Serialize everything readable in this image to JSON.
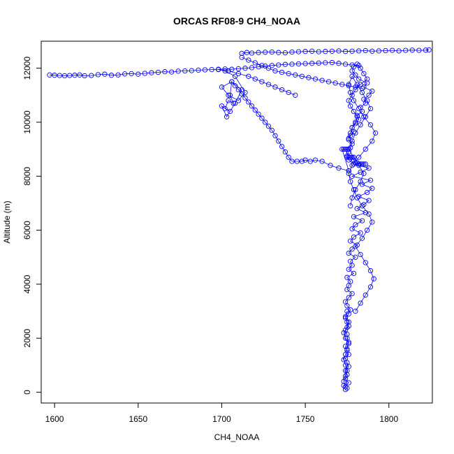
{
  "chart_data": {
    "type": "scatter",
    "title": "ORCAS RF08-9 CH4_NOAA",
    "xlabel": "CH4_NOAA",
    "ylabel": "Altitude (m)",
    "xlim": [
      1592,
      1826
    ],
    "ylim": [
      -400,
      13000
    ],
    "x_ticks": [
      1600,
      1650,
      1700,
      1750,
      1800
    ],
    "y_ticks": [
      0,
      2000,
      4000,
      6000,
      8000,
      10000,
      12000
    ],
    "grid": false,
    "legend": "none",
    "point_style": "open-circle-with-connecting-line",
    "color": "#0000ff",
    "series": [
      {
        "x": [
          1774,
          1775,
          1773,
          1776,
          1774,
          1775,
          1774,
          1776,
          1775,
          1774,
          1776,
          1775,
          1774,
          1776,
          1775,
          1775,
          1774,
          1776,
          1775,
          1774,
          1776,
          1777,
          1775,
          1774,
          1776,
          1778,
          1775,
          1776,
          1777,
          1775,
          1779,
          1776,
          1778,
          1777,
          1780,
          1776,
          1778,
          1781,
          1777,
          1779,
          1783,
          1778,
          1780,
          1784,
          1779,
          1786,
          1781,
          1785,
          1788,
          1782,
          1787,
          1790,
          1784,
          1789,
          1778,
          1783,
          1788,
          1779,
          1776,
          1775,
          1776,
          1777,
          1778,
          1776,
          1777,
          1779,
          1778,
          1780,
          1782,
          1781,
          1784,
          1783,
          1786,
          1785,
          1788,
          1790,
          1785,
          1787,
          1782,
          1780,
          1778,
          1779,
          1781,
          1783,
          1785,
          1787,
          1783,
          1780,
          1778,
          1776,
          1777,
          1779,
          1781,
          1780,
          1778,
          1777,
          1776
        ],
        "y": [
          100,
          150,
          250,
          350,
          500,
          650,
          800,
          950,
          1100,
          1250,
          1400,
          1550,
          1700,
          1850,
          2000,
          2150,
          2300,
          2450,
          2600,
          2750,
          2900,
          3050,
          3200,
          3350,
          3500,
          3650,
          3800,
          3950,
          4100,
          4250,
          4400,
          4550,
          4700,
          4850,
          5000,
          5150,
          5300,
          5450,
          5600,
          5750,
          5900,
          6050,
          6200,
          6350,
          6500,
          6650,
          6800,
          6950,
          7100,
          7250,
          7400,
          7550,
          7700,
          7850,
          8000,
          8150,
          8300,
          8450,
          8600,
          8750,
          8900,
          9050,
          9200,
          9350,
          9500,
          9650,
          9800,
          9950,
          10100,
          10250,
          10400,
          10550,
          10700,
          10850,
          11000,
          11150,
          11300,
          11450,
          11600,
          11750,
          11900,
          12050,
          12150,
          12000,
          11800,
          11600,
          11400,
          11200,
          11000,
          10800,
          10600,
          10400,
          10200,
          10000,
          9800,
          9600,
          9400
        ]
      },
      {
        "x": [
          1780,
          1783,
          1786,
          1789,
          1791,
          1789,
          1786,
          1783,
          1780,
          1784,
          1787,
          1790,
          1788,
          1784,
          1781,
          1779,
          1777,
          1776,
          1778,
          1782,
          1786,
          1790,
          1792,
          1789,
          1785,
          1782,
          1779,
          1777,
          1776,
          1778,
          1781,
          1784,
          1787,
          1789,
          1786,
          1783,
          1780,
          1778,
          1776,
          1779,
          1782,
          1785,
          1783,
          1780,
          1778,
          1777
        ],
        "y": [
          3000,
          3300,
          3600,
          3900,
          4200,
          4500,
          4800,
          5100,
          5400,
          5700,
          6000,
          6300,
          6600,
          6900,
          7200,
          7500,
          7800,
          8100,
          8400,
          8700,
          9000,
          9300,
          9600,
          9900,
          10200,
          10500,
          10800,
          11100,
          11400,
          11700,
          11400,
          11100,
          10800,
          10500,
          10200,
          9900,
          9600,
          9300,
          9000,
          8700,
          8400,
          8100,
          7800,
          7500,
          7200,
          6900
        ]
      },
      {
        "x": [
          1774,
          1773,
          1774,
          1775,
          1774,
          1773,
          1774,
          1775,
          1776,
          1774,
          1773,
          1775,
          1776,
          1774,
          1775
        ],
        "y": [
          200,
          400,
          600,
          800,
          1000,
          1200,
          1400,
          1600,
          1800,
          2000,
          2200,
          2400,
          2600,
          2800,
          3000
        ]
      },
      {
        "x": [
          1776,
          1772,
          1773,
          1774,
          1775,
          1775,
          1776,
          1777,
          1778,
          1779,
          1780,
          1781,
          1782,
          1783,
          1784,
          1785,
          1786
        ],
        "y": [
          8200,
          9000,
          9000,
          9000,
          9000,
          8700,
          8700,
          8700,
          8700,
          8600,
          8500,
          8500,
          8450,
          8450,
          8450,
          8450,
          8450
        ]
      },
      {
        "x": [
          1776,
          1770,
          1765,
          1760,
          1756,
          1753,
          1750,
          1748,
          1745,
          1742,
          1740,
          1738,
          1736,
          1734,
          1732,
          1730,
          1728,
          1726,
          1724,
          1722,
          1720,
          1718,
          1716,
          1714,
          1712,
          1710,
          1708,
          1706,
          1705,
          1707,
          1704,
          1702,
          1705,
          1700,
          1703,
          1708,
          1712,
          1706,
          1700,
          1704,
          1710,
          1714,
          1708,
          1702,
          1698,
          1704,
          1710,
          1716,
          1720,
          1724,
          1728,
          1732,
          1736,
          1740,
          1744
        ],
        "y": [
          8200,
          8300,
          8400,
          8550,
          8600,
          8550,
          8600,
          8550,
          8550,
          8550,
          8700,
          8900,
          9100,
          9300,
          9500,
          9700,
          9850,
          10000,
          10150,
          10300,
          10450,
          10600,
          10750,
          10900,
          11050,
          11200,
          11350,
          11500,
          11000,
          10700,
          10800,
          10500,
          10400,
          10600,
          10200,
          10700,
          11200,
          11500,
          11300,
          11000,
          10800,
          11100,
          11700,
          11900,
          11950,
          11900,
          11800,
          11700,
          11600,
          11500,
          11400,
          11300,
          11200,
          11100,
          11000
        ]
      },
      {
        "x": [
          1597,
          1600,
          1603,
          1606,
          1609,
          1612,
          1615,
          1618,
          1622,
          1626,
          1630,
          1634,
          1638,
          1642,
          1646,
          1650,
          1654,
          1658,
          1662,
          1666,
          1670,
          1674,
          1678,
          1682,
          1686,
          1690,
          1694,
          1698,
          1702,
          1706,
          1710,
          1714,
          1718,
          1722,
          1726,
          1730,
          1734,
          1738,
          1742,
          1746,
          1750,
          1754,
          1758,
          1762,
          1766,
          1770,
          1774,
          1778,
          1782
        ],
        "y": [
          11750,
          11740,
          11730,
          11720,
          11730,
          11740,
          11750,
          11720,
          11730,
          11760,
          11780,
          11740,
          11750,
          11790,
          11800,
          11780,
          11810,
          11830,
          11850,
          11870,
          11860,
          11890,
          11900,
          11910,
          11930,
          11940,
          11950,
          11960,
          11970,
          11960,
          11980,
          12000,
          12020,
          12050,
          12080,
          12100,
          12120,
          12140,
          12150,
          12160,
          12170,
          12180,
          12190,
          12200,
          12210,
          12180,
          12150,
          12120,
          12100
        ]
      },
      {
        "x": [
          1712,
          1715,
          1718,
          1722,
          1726,
          1730,
          1734,
          1738,
          1742,
          1746,
          1750,
          1754,
          1758,
          1762,
          1766,
          1770,
          1774,
          1778,
          1782,
          1786,
          1790,
          1794,
          1798,
          1802,
          1806,
          1810,
          1814,
          1818,
          1822,
          1824
        ],
        "y": [
          12550,
          12580,
          12560,
          12580,
          12590,
          12600,
          12580,
          12570,
          12600,
          12610,
          12620,
          12630,
          12610,
          12620,
          12630,
          12640,
          12620,
          12630,
          12640,
          12650,
          12630,
          12640,
          12650,
          12660,
          12640,
          12660,
          12670,
          12660,
          12670,
          12680
        ]
      },
      {
        "x": [
          1712,
          1716,
          1720,
          1724,
          1728,
          1732,
          1736,
          1740,
          1744,
          1748,
          1752,
          1756,
          1760,
          1764,
          1768,
          1772,
          1776,
          1780,
          1784
        ],
        "y": [
          12400,
          12300,
          12200,
          12100,
          12000,
          11900,
          11850,
          11800,
          11750,
          11700,
          11650,
          11600,
          11550,
          11500,
          11450,
          11400,
          11350,
          11300,
          11250
        ]
      }
    ]
  }
}
